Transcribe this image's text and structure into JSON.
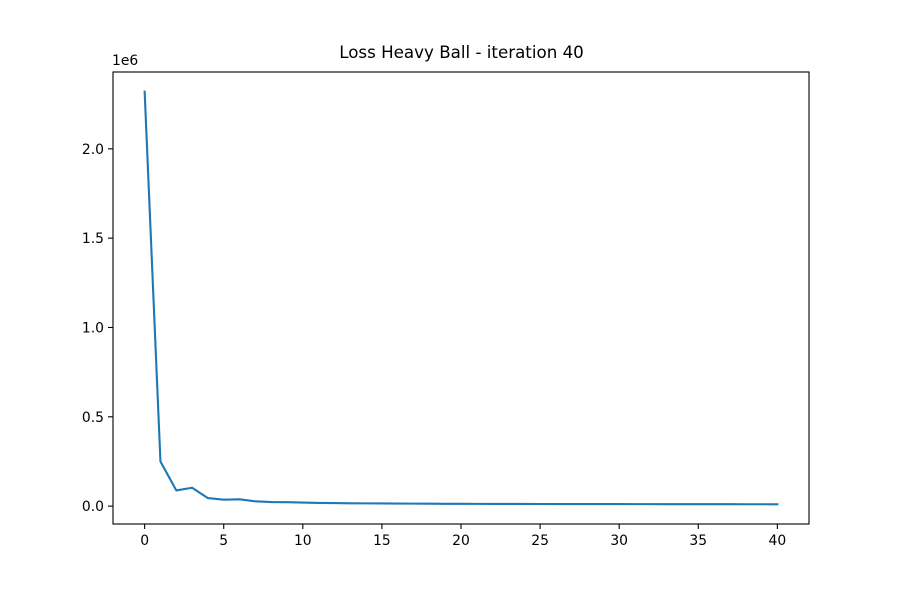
{
  "chart_data": {
    "type": "line",
    "title": "Loss Heavy Ball - iteration 40",
    "xlabel": "",
    "ylabel": "",
    "y_offset_label": "1e6",
    "y_scale_factor": 1000000,
    "xlim": [
      -2,
      42
    ],
    "ylim": [
      -100000,
      2430000
    ],
    "x_ticks": [
      0,
      5,
      10,
      15,
      20,
      25,
      30,
      35,
      40
    ],
    "x_tick_labels": [
      "0",
      "5",
      "10",
      "15",
      "20",
      "25",
      "30",
      "35",
      "40"
    ],
    "y_ticks": [
      0,
      500000,
      1000000,
      1500000,
      2000000
    ],
    "y_tick_labels": [
      "0.0",
      "0.5",
      "1.0",
      "1.5",
      "2.0"
    ],
    "grid": false,
    "series": [
      {
        "color": "#1f77b4",
        "x": [
          0,
          1,
          2,
          3,
          4,
          5,
          6,
          7,
          8,
          9,
          10,
          11,
          12,
          13,
          14,
          15,
          16,
          17,
          18,
          19,
          20,
          21,
          22,
          23,
          24,
          25,
          26,
          27,
          28,
          29,
          30,
          31,
          32,
          33,
          34,
          35,
          36,
          37,
          38,
          39,
          40
        ],
        "y": [
          2320000,
          250000,
          88000,
          103000,
          45000,
          36000,
          38000,
          27000,
          23000,
          22000,
          20000,
          18000,
          17000,
          16000,
          15500,
          15000,
          14500,
          14000,
          13500,
          13200,
          13000,
          12700,
          12500,
          12300,
          12100,
          12000,
          11800,
          11700,
          11600,
          11500,
          11400,
          11300,
          11200,
          11100,
          11000,
          10900,
          10800,
          10700,
          10600,
          10500,
          10400
        ]
      }
    ]
  }
}
